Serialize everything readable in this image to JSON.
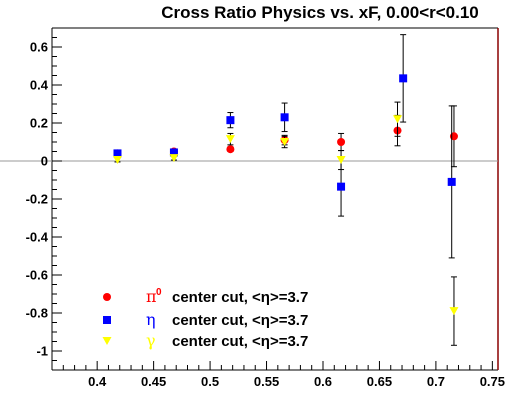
{
  "chart_data": {
    "type": "scatter",
    "title": "Cross Ratio Physics vs. xF, 0.00<r<0.10",
    "xlabel": "",
    "ylabel": "",
    "xlim": [
      0.36,
      0.755
    ],
    "ylim": [
      -1.1,
      0.7
    ],
    "x_ticks": [
      "0.4",
      "0.45",
      "0.5",
      "0.55",
      "0.6",
      "0.65",
      "0.7",
      "0.75"
    ],
    "y_ticks": [
      "0.6",
      "0.4",
      "0.2",
      "0",
      "-0.2",
      "-0.4",
      "-0.6",
      "-0.8",
      "-1"
    ],
    "zero_line": true,
    "grid": false,
    "legend_position": "bottom-left",
    "series": [
      {
        "name": "center cut, <η>=3.7",
        "symbol_text": "π",
        "symbol_sup": "0",
        "marker": "circle",
        "color": "#ff0000",
        "points": [
          {
            "x": 0.418,
            "y": 0.04,
            "err": 0.012
          },
          {
            "x": 0.468,
            "y": 0.05,
            "err": 0.012
          },
          {
            "x": 0.518,
            "y": 0.062,
            "err": 0.012
          },
          {
            "x": 0.566,
            "y": 0.11,
            "err": 0.025
          },
          {
            "x": 0.616,
            "y": 0.1,
            "err": 0.045
          },
          {
            "x": 0.666,
            "y": 0.16,
            "err": 0.08
          },
          {
            "x": 0.716,
            "y": 0.13,
            "err": 0.16
          }
        ]
      },
      {
        "name": "center cut, <η>=3.7",
        "symbol_text": "η",
        "symbol_sup": "",
        "marker": "square",
        "color": "#0000ff",
        "points": [
          {
            "x": 0.418,
            "y": 0.04,
            "err": 0.015
          },
          {
            "x": 0.468,
            "y": 0.045,
            "err": 0.015
          },
          {
            "x": 0.518,
            "y": 0.215,
            "err": 0.04
          },
          {
            "x": 0.566,
            "y": 0.23,
            "err": 0.075
          },
          {
            "x": 0.616,
            "y": -0.135,
            "err": 0.155
          },
          {
            "x": 0.671,
            "y": 0.435,
            "err": 0.23
          },
          {
            "x": 0.714,
            "y": -0.11,
            "err": 0.4
          }
        ]
      },
      {
        "name": "center cut, <η>=3.7",
        "symbol_text": "γ",
        "symbol_sup": "",
        "marker": "triangle-down",
        "color": "#ffff00",
        "points": [
          {
            "x": 0.418,
            "y": 0.005,
            "err": 0.01
          },
          {
            "x": 0.468,
            "y": 0.015,
            "err": 0.01
          },
          {
            "x": 0.518,
            "y": 0.115,
            "err": 0.03
          },
          {
            "x": 0.566,
            "y": 0.1,
            "err": 0.03
          },
          {
            "x": 0.616,
            "y": 0.005,
            "err": 0.05
          },
          {
            "x": 0.666,
            "y": 0.22,
            "err": 0.09
          },
          {
            "x": 0.716,
            "y": -0.79,
            "err": 0.18
          }
        ]
      }
    ]
  }
}
